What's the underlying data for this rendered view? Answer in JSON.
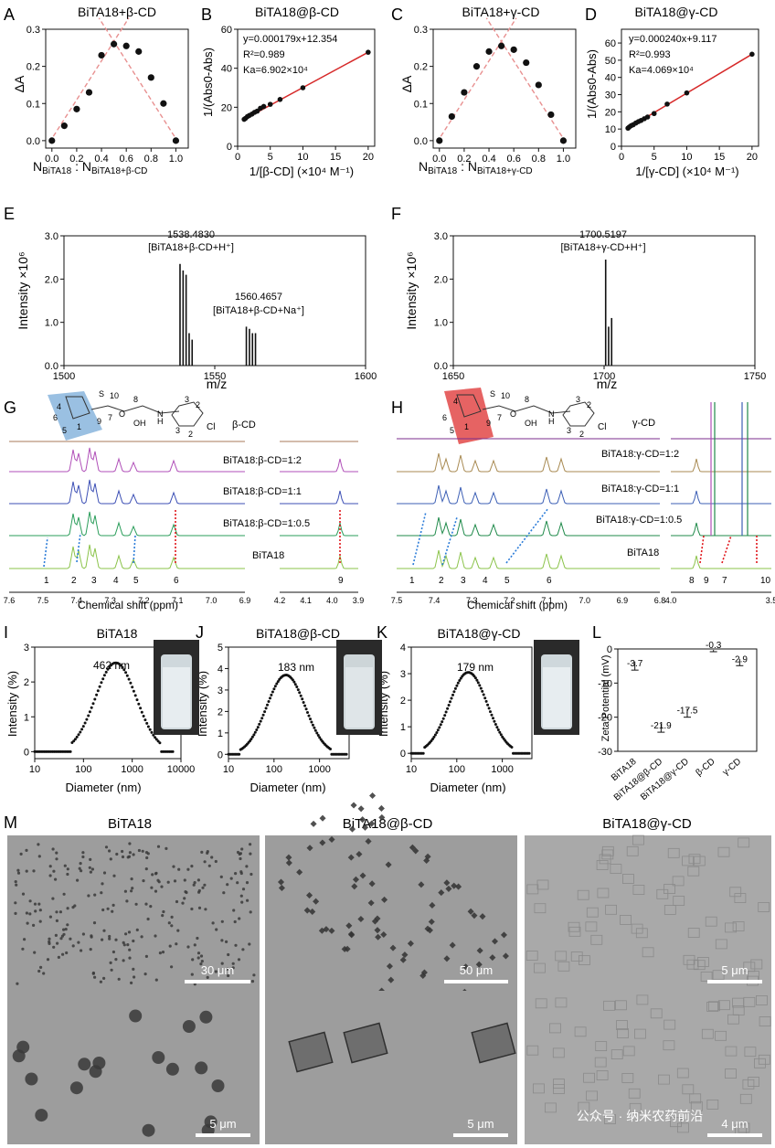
{
  "panels": {
    "A": {
      "letter": "A",
      "title": "BiTA18+β-CD",
      "ylabel": "ΔA",
      "xlabel_pre": "N",
      "xlabel_sub1": "BiTA18",
      "xlabel_mid": " : N",
      "xlabel_sub2": "BiTA18+β-CD"
    },
    "B": {
      "letter": "B",
      "title": "BiTA18@β-CD",
      "ylabel": "1/(Abs0-Abs)",
      "xlabel": "1/[β-CD] (×10⁴ M⁻¹)",
      "eq": "y=0.000179x+12.354",
      "r2": "R²=0.989",
      "ka": "Ka=6.902×10⁴"
    },
    "C": {
      "letter": "C",
      "title": "BiTA18+γ-CD",
      "ylabel": "ΔA",
      "xlabel_pre": "N",
      "xlabel_sub1": "BiTA18",
      "xlabel_mid": " : N",
      "xlabel_sub2": "BiTA18+γ-CD"
    },
    "D": {
      "letter": "D",
      "title": "BiTA18@γ-CD",
      "ylabel": "1/(Abs0-Abs)",
      "xlabel": "1/[γ-CD] (×10⁴ M⁻¹)",
      "eq": "y=0.000240x+9.117",
      "r2": "R²=0.993",
      "ka": "Ka=4.069×10⁴"
    },
    "E": {
      "letter": "E",
      "ylabel": "Intensity ×10⁶",
      "xlabel": "m/z",
      "ann1a": "1538.4830",
      "ann1b": "[BiTA18+β-CD+H⁺]",
      "ann2a": "1560.4657",
      "ann2b": "[BiTA18+β-CD+Na⁺]"
    },
    "F": {
      "letter": "F",
      "ylabel": "Intensity ×10⁶",
      "xlabel": "m/z",
      "ann1a": "1700.5197",
      "ann1b": "[BiTA18+γ-CD+H⁺]"
    },
    "G": {
      "letter": "G",
      "xlabel": "Chemical shift (ppm)",
      "traces": [
        "β-CD",
        "BiTA18:β-CD=1:2",
        "BiTA18:β-CD=1:1",
        "BiTA18:β-CD=1:0.5",
        "BiTA18"
      ],
      "peaks": [
        "1",
        "2",
        "3",
        "4",
        "5",
        "6",
        "9"
      ],
      "struct_labels": [
        "4",
        "5",
        "6",
        "1",
        "9",
        "7",
        "8",
        "10",
        "S",
        "OH",
        "H",
        "N",
        "O",
        "3",
        "2",
        "3",
        "2",
        "Cl"
      ]
    },
    "H": {
      "letter": "H",
      "xlabel": "Chemical shift (ppm)",
      "traces": [
        "γ-CD",
        "BiTA18:γ-CD=1:2",
        "BiTA18:γ-CD=1:1",
        "BiTA18:γ-CD=1:0.5",
        "BiTA18"
      ],
      "peaks": [
        "1",
        "2",
        "3",
        "4",
        "5",
        "6",
        "8",
        "9",
        "7",
        "10"
      ],
      "struct_labels": [
        "4",
        "6",
        "5",
        "1",
        "9",
        "7",
        "8",
        "10",
        "S",
        "OH",
        "H",
        "N",
        "O",
        "3",
        "2",
        "3",
        "2",
        "Cl"
      ]
    },
    "I": {
      "letter": "I",
      "title": "BiTA18",
      "ylabel": "Intensity (%)",
      "xlabel": "Diameter (nm)",
      "peak": "462 nm"
    },
    "J": {
      "letter": "J",
      "title": "BiTA18@β-CD",
      "ylabel": "Intensity (%)",
      "xlabel": "Diameter (nm)",
      "peak": "183 nm"
    },
    "K": {
      "letter": "K",
      "title": "BiTA18@γ-CD",
      "ylabel": "Intensity (%)",
      "xlabel": "Diameter (nm)",
      "peak": "179 nm"
    },
    "L": {
      "letter": "L",
      "ylabel": "Zeta Potential (mV)"
    },
    "M": {
      "letter": "M",
      "titles": [
        "BiTA18",
        "BiTA18@β-CD",
        "BiTA18@γ-CD"
      ],
      "scales": [
        "30 μm",
        "50 μm",
        "5 μm",
        "5 μm",
        "5 μm",
        "4 μm"
      ]
    }
  },
  "watermark": "公众号 · 纳米农药前沿",
  "colors": {
    "fit": "#d62828",
    "dash": "#e89090",
    "point": "#111111",
    "blue": "#2a7bd8",
    "red": "#e0161b",
    "teal": "#19b7c0",
    "green": "#34c02e",
    "navy": "#1f5f9e",
    "redbar": "#e53935"
  },
  "chart_data": [
    {
      "id": "A",
      "type": "scatter",
      "title": "BiTA18+β-CD",
      "ylabel": "ΔA",
      "x": [
        0.0,
        0.1,
        0.2,
        0.3,
        0.4,
        0.5,
        0.6,
        0.7,
        0.8,
        0.9,
        1.0
      ],
      "y": [
        0.0,
        0.04,
        0.085,
        0.13,
        0.23,
        0.26,
        0.255,
        0.24,
        0.17,
        0.1,
        0.0
      ],
      "xlim": [
        -0.05,
        1.1
      ],
      "ylim": [
        -0.02,
        0.3
      ],
      "xticks": [
        "0.0",
        "0.2",
        "0.4",
        "0.6",
        "0.8",
        "1.0"
      ],
      "yticks": [
        "0.0",
        "0.1",
        "0.2",
        "0.3"
      ]
    },
    {
      "id": "B",
      "type": "scatter",
      "title": "BiTA18@β-CD",
      "ylabel": "1/(Abs0-Abs)",
      "xlabel": "1/[β-CD] (×10⁴ M⁻¹)",
      "x": [
        1.0,
        1.2,
        1.5,
        1.8,
        2.2,
        2.6,
        3.0,
        3.5,
        4.0,
        5.0,
        6.5,
        10.0,
        20.0
      ],
      "y": [
        13.8,
        14.3,
        15.2,
        15.8,
        16.5,
        17.4,
        18.0,
        19.5,
        20.4,
        21.5,
        24.0,
        30.0,
        48.2
      ],
      "xlim": [
        0,
        21
      ],
      "ylim": [
        0,
        60
      ],
      "xticks": [
        "0",
        "5",
        "10",
        "15",
        "20"
      ],
      "yticks": [
        "0",
        "20",
        "40",
        "60"
      ]
    },
    {
      "id": "C",
      "type": "scatter",
      "title": "BiTA18+γ-CD",
      "ylabel": "ΔA",
      "x": [
        0.0,
        0.1,
        0.2,
        0.3,
        0.4,
        0.5,
        0.6,
        0.7,
        0.8,
        0.9,
        1.0
      ],
      "y": [
        0.0,
        0.065,
        0.13,
        0.2,
        0.24,
        0.255,
        0.245,
        0.21,
        0.15,
        0.07,
        0.0
      ],
      "xlim": [
        -0.05,
        1.1
      ],
      "ylim": [
        -0.02,
        0.3
      ],
      "xticks": [
        "0.0",
        "0.2",
        "0.4",
        "0.6",
        "0.8",
        "1.0"
      ],
      "yticks": [
        "0.0",
        "0.1",
        "0.2",
        "0.3"
      ]
    },
    {
      "id": "D",
      "type": "scatter",
      "title": "BiTA18@γ-CD",
      "ylabel": "1/(Abs0-Abs)",
      "xlabel": "1/[γ-CD] (×10⁴ M⁻¹)",
      "x": [
        1.0,
        1.2,
        1.5,
        1.8,
        2.2,
        2.6,
        3.0,
        3.5,
        4.0,
        5.0,
        7.0,
        10.0,
        20.0
      ],
      "y": [
        10.5,
        11.2,
        12.0,
        12.5,
        13.5,
        14.3,
        15.0,
        16.0,
        17.0,
        19.0,
        24.5,
        31.0,
        53.5
      ],
      "xlim": [
        0,
        21
      ],
      "ylim": [
        0,
        68
      ],
      "xticks": [
        "0",
        "5",
        "10",
        "15",
        "20"
      ],
      "yticks": [
        "0",
        "10",
        "20",
        "30",
        "40",
        "50",
        "60"
      ]
    },
    {
      "id": "E",
      "type": "bar",
      "ylabel": "Intensity ×10⁶",
      "xlabel": "m/z",
      "x": [
        1538.48,
        1539.5,
        1540.5,
        1541.5,
        1542.5,
        1560.47,
        1561.5,
        1562.5,
        1563.5
      ],
      "y": [
        2.35,
        2.2,
        2.1,
        0.75,
        0.6,
        0.9,
        0.85,
        0.75,
        0.75
      ],
      "xlim": [
        1500,
        1600
      ],
      "ylim": [
        0,
        3.0
      ],
      "xticks": [
        "1500",
        "1550",
        "1600"
      ],
      "yticks": [
        "0.0",
        "1.0",
        "2.0",
        "3.0"
      ]
    },
    {
      "id": "F",
      "type": "bar",
      "ylabel": "Intensity ×10⁶",
      "xlabel": "m/z",
      "x": [
        1700.52,
        1701.5,
        1702.5
      ],
      "y": [
        2.45,
        0.9,
        1.1
      ],
      "xlim": [
        1650,
        1750
      ],
      "ylim": [
        0,
        3.0
      ],
      "xticks": [
        "1650",
        "1700",
        "1750"
      ],
      "yticks": [
        "0.0",
        "1.0",
        "2.0",
        "3.0"
      ]
    },
    {
      "id": "G",
      "type": "line",
      "xlabel": "Chemical shift (ppm)",
      "xticks": [
        "7.6",
        "7.5",
        "7.4",
        "7.3",
        "7.2",
        "7.1",
        "7.0",
        "6.9",
        "4.2",
        "4.1",
        "4.0",
        "3.9"
      ]
    },
    {
      "id": "H",
      "type": "line",
      "xlabel": "Chemical shift (ppm)",
      "xticks": [
        "7.5",
        "7.4",
        "7.3",
        "7.2",
        "7.1",
        "7.0",
        "6.9",
        "6.8",
        "4.0",
        "3.5"
      ]
    },
    {
      "id": "I",
      "type": "scatter",
      "title": "BiTA18",
      "ylabel": "Intensity (%)",
      "xlabel": "Diameter (nm)",
      "mode": 462,
      "peak_val": 2.55,
      "xticks": [
        "10",
        "100",
        "1000",
        "10000"
      ],
      "yticks": [
        "0",
        "1",
        "2",
        "3"
      ],
      "ylim": [
        -0.2,
        3
      ]
    },
    {
      "id": "J",
      "type": "scatter",
      "title": "BiTA18@β-CD",
      "ylabel": "Intensity (%)",
      "xlabel": "Diameter (nm)",
      "mode": 183,
      "peak_val": 3.7,
      "xticks": [
        "10",
        "100",
        "1000"
      ],
      "yticks": [
        "0",
        "1",
        "2",
        "3",
        "4",
        "5"
      ],
      "ylim": [
        -0.2,
        5
      ]
    },
    {
      "id": "K",
      "type": "scatter",
      "title": "BiTA18@γ-CD",
      "ylabel": "Intensity (%)",
      "xlabel": "Diameter (nm)",
      "mode": 179,
      "peak_val": 3.05,
      "xticks": [
        "10",
        "100",
        "1000"
      ],
      "yticks": [
        "0",
        "1",
        "2",
        "3",
        "4"
      ],
      "ylim": [
        -0.2,
        4
      ]
    },
    {
      "id": "L",
      "type": "bar",
      "ylabel": "Zeta Potential (mV)",
      "categories": [
        "BiTA18",
        "BiTA18@β-CD",
        "BiTA18@γ-CD",
        "β-CD",
        "γ-CD"
      ],
      "values": [
        -3.7,
        -21.9,
        -17.5,
        -0.3,
        -2.9
      ],
      "labels": [
        "-3.7",
        "-21.9",
        "-17.5",
        "-0.3",
        "-2.9"
      ],
      "errors": [
        2.5,
        2.5,
        2.5,
        0.5,
        2.0
      ],
      "ylim": [
        0,
        -30
      ],
      "yticks": [
        "0",
        "-10",
        "-20",
        "-30"
      ]
    }
  ]
}
